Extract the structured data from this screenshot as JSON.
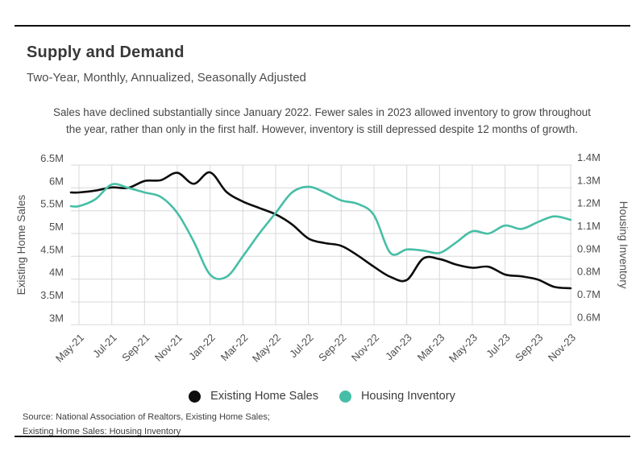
{
  "header": {
    "title": "Supply and Demand",
    "subtitle": "Two-Year, Monthly, Annualized, Seasonally Adjusted"
  },
  "annotation": {
    "text": "Sales have declined substantially since January 2022. Fewer sales in 2023 allowed inventory to grow throughout the year, rather than only in the first half. However, inventory is still depressed despite 12 months of growth."
  },
  "chart_data": {
    "type": "line",
    "x": [
      "May-21",
      "Jun-21",
      "Jul-21",
      "Aug-21",
      "Sep-21",
      "Oct-21",
      "Nov-21",
      "Dec-21",
      "Jan-22",
      "Feb-22",
      "Mar-22",
      "Apr-22",
      "May-22",
      "Jun-22",
      "Jul-22",
      "Aug-22",
      "Sep-22",
      "Oct-22",
      "Nov-22",
      "Dec-22",
      "Jan-23",
      "Feb-23",
      "Mar-23",
      "Apr-23",
      "May-23",
      "Jun-23",
      "Jul-23",
      "Aug-23",
      "Sep-23",
      "Oct-23",
      "Nov-23"
    ],
    "x_tick_labels": [
      "May-21",
      "Jul-21",
      "Sep-21",
      "Nov-21",
      "Jan-22",
      "Mar-22",
      "May-22",
      "Jul-22",
      "Sep-22",
      "Nov-22",
      "Jan-23",
      "Mar-23",
      "May-23",
      "Jul-23",
      "Sep-23",
      "Nov-23"
    ],
    "left_axis": {
      "title": "Existing Home Sales",
      "tick_labels": [
        "6.5M",
        "6M",
        "5.5M",
        "5M",
        "4.5M",
        "4M",
        "3.5M",
        "3M"
      ],
      "tick_values": [
        6.5,
        6.0,
        5.5,
        5.0,
        4.5,
        4.0,
        3.5,
        3.0
      ],
      "range": [
        3.0,
        6.5
      ]
    },
    "right_axis": {
      "title": "Housing Inventory",
      "tick_labels": [
        "1.4M",
        "1.3M",
        "1.2M",
        "1.1M",
        "0.9M",
        "0.8M",
        "0.7M",
        "0.6M"
      ],
      "tick_values": [
        1.4,
        1.3,
        1.2,
        1.1,
        0.9,
        0.8,
        0.7,
        0.6
      ],
      "range": [
        0.6,
        1.4
      ]
    },
    "series": [
      {
        "name": "Existing Home Sales",
        "axis": "left",
        "color": "#0d0d0d",
        "unit": "M",
        "values": [
          5.9,
          5.94,
          6.01,
          6.0,
          6.15,
          6.17,
          6.33,
          6.09,
          6.34,
          5.91,
          5.7,
          5.56,
          5.42,
          5.2,
          4.89,
          4.79,
          4.73,
          4.52,
          4.27,
          4.05,
          3.98,
          4.45,
          4.44,
          4.32,
          4.25,
          4.27,
          4.1,
          4.06,
          3.99,
          3.83,
          3.8
        ]
      },
      {
        "name": "Housing Inventory",
        "axis": "right",
        "color": "#46bea6",
        "unit": "M",
        "values": [
          1.22,
          1.25,
          1.315,
          1.3,
          1.28,
          1.26,
          1.19,
          1.03,
          0.82,
          0.81,
          0.9,
          1.1,
          1.19,
          1.28,
          1.305,
          1.28,
          1.245,
          1.23,
          1.18,
          0.93,
          0.96,
          0.95,
          0.93,
          1.02,
          1.11,
          1.1,
          1.135,
          1.12,
          1.15,
          1.175,
          1.16
        ]
      }
    ],
    "grid": true,
    "legend_position": "bottom"
  },
  "legend": {
    "items": [
      {
        "label": "Existing Home Sales",
        "color": "#0d0d0d"
      },
      {
        "label": "Housing Inventory",
        "color": "#46bea6"
      }
    ]
  },
  "source": {
    "line1": "Source:  National Association of Realtors, Existing Home Sales;",
    "line2": "Existing Home Sales: Housing Inventory"
  },
  "colors": {
    "rule": "#0f0f0f",
    "grid": "#d8d8d8",
    "axis_text": "#4e4e4e",
    "series_black": "#0d0d0d",
    "series_teal": "#46bea6"
  }
}
